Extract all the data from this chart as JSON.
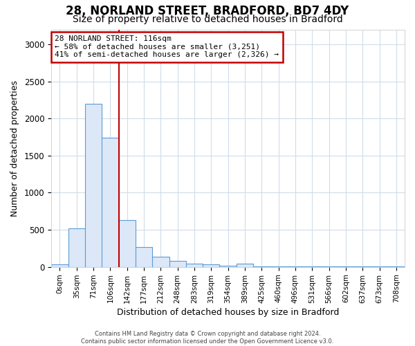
{
  "title1": "28, NORLAND STREET, BRADFORD, BD7 4DY",
  "title2": "Size of property relative to detached houses in Bradford",
  "xlabel": "Distribution of detached houses by size in Bradford",
  "ylabel": "Number of detached properties",
  "bar_labels": [
    "0sqm",
    "35sqm",
    "71sqm",
    "106sqm",
    "142sqm",
    "177sqm",
    "212sqm",
    "248sqm",
    "283sqm",
    "319sqm",
    "354sqm",
    "389sqm",
    "425sqm",
    "460sqm",
    "496sqm",
    "531sqm",
    "566sqm",
    "602sqm",
    "637sqm",
    "673sqm",
    "708sqm"
  ],
  "bar_values": [
    30,
    520,
    2200,
    1740,
    635,
    265,
    140,
    80,
    45,
    30,
    15,
    40,
    10,
    5,
    5,
    5,
    5,
    5,
    5,
    5,
    5
  ],
  "bar_color": "#dce8f8",
  "bar_edge_color": "#5b9bd5",
  "vline_x": 3.0,
  "vline_color": "#c00000",
  "annotation_text": "28 NORLAND STREET: 116sqm\n← 58% of detached houses are smaller (3,251)\n41% of semi-detached houses are larger (2,326) →",
  "annotation_box_color": "#ffffff",
  "annotation_box_edge": "#c00000",
  "ylim": [
    0,
    3200
  ],
  "yticks": [
    0,
    500,
    1000,
    1500,
    2000,
    2500,
    3000
  ],
  "footer": "Contains HM Land Registry data © Crown copyright and database right 2024.\nContains public sector information licensed under the Open Government Licence v3.0.",
  "bg_color": "#ffffff",
  "grid_color": "#d0dce8",
  "title1_fontsize": 12,
  "title2_fontsize": 10
}
